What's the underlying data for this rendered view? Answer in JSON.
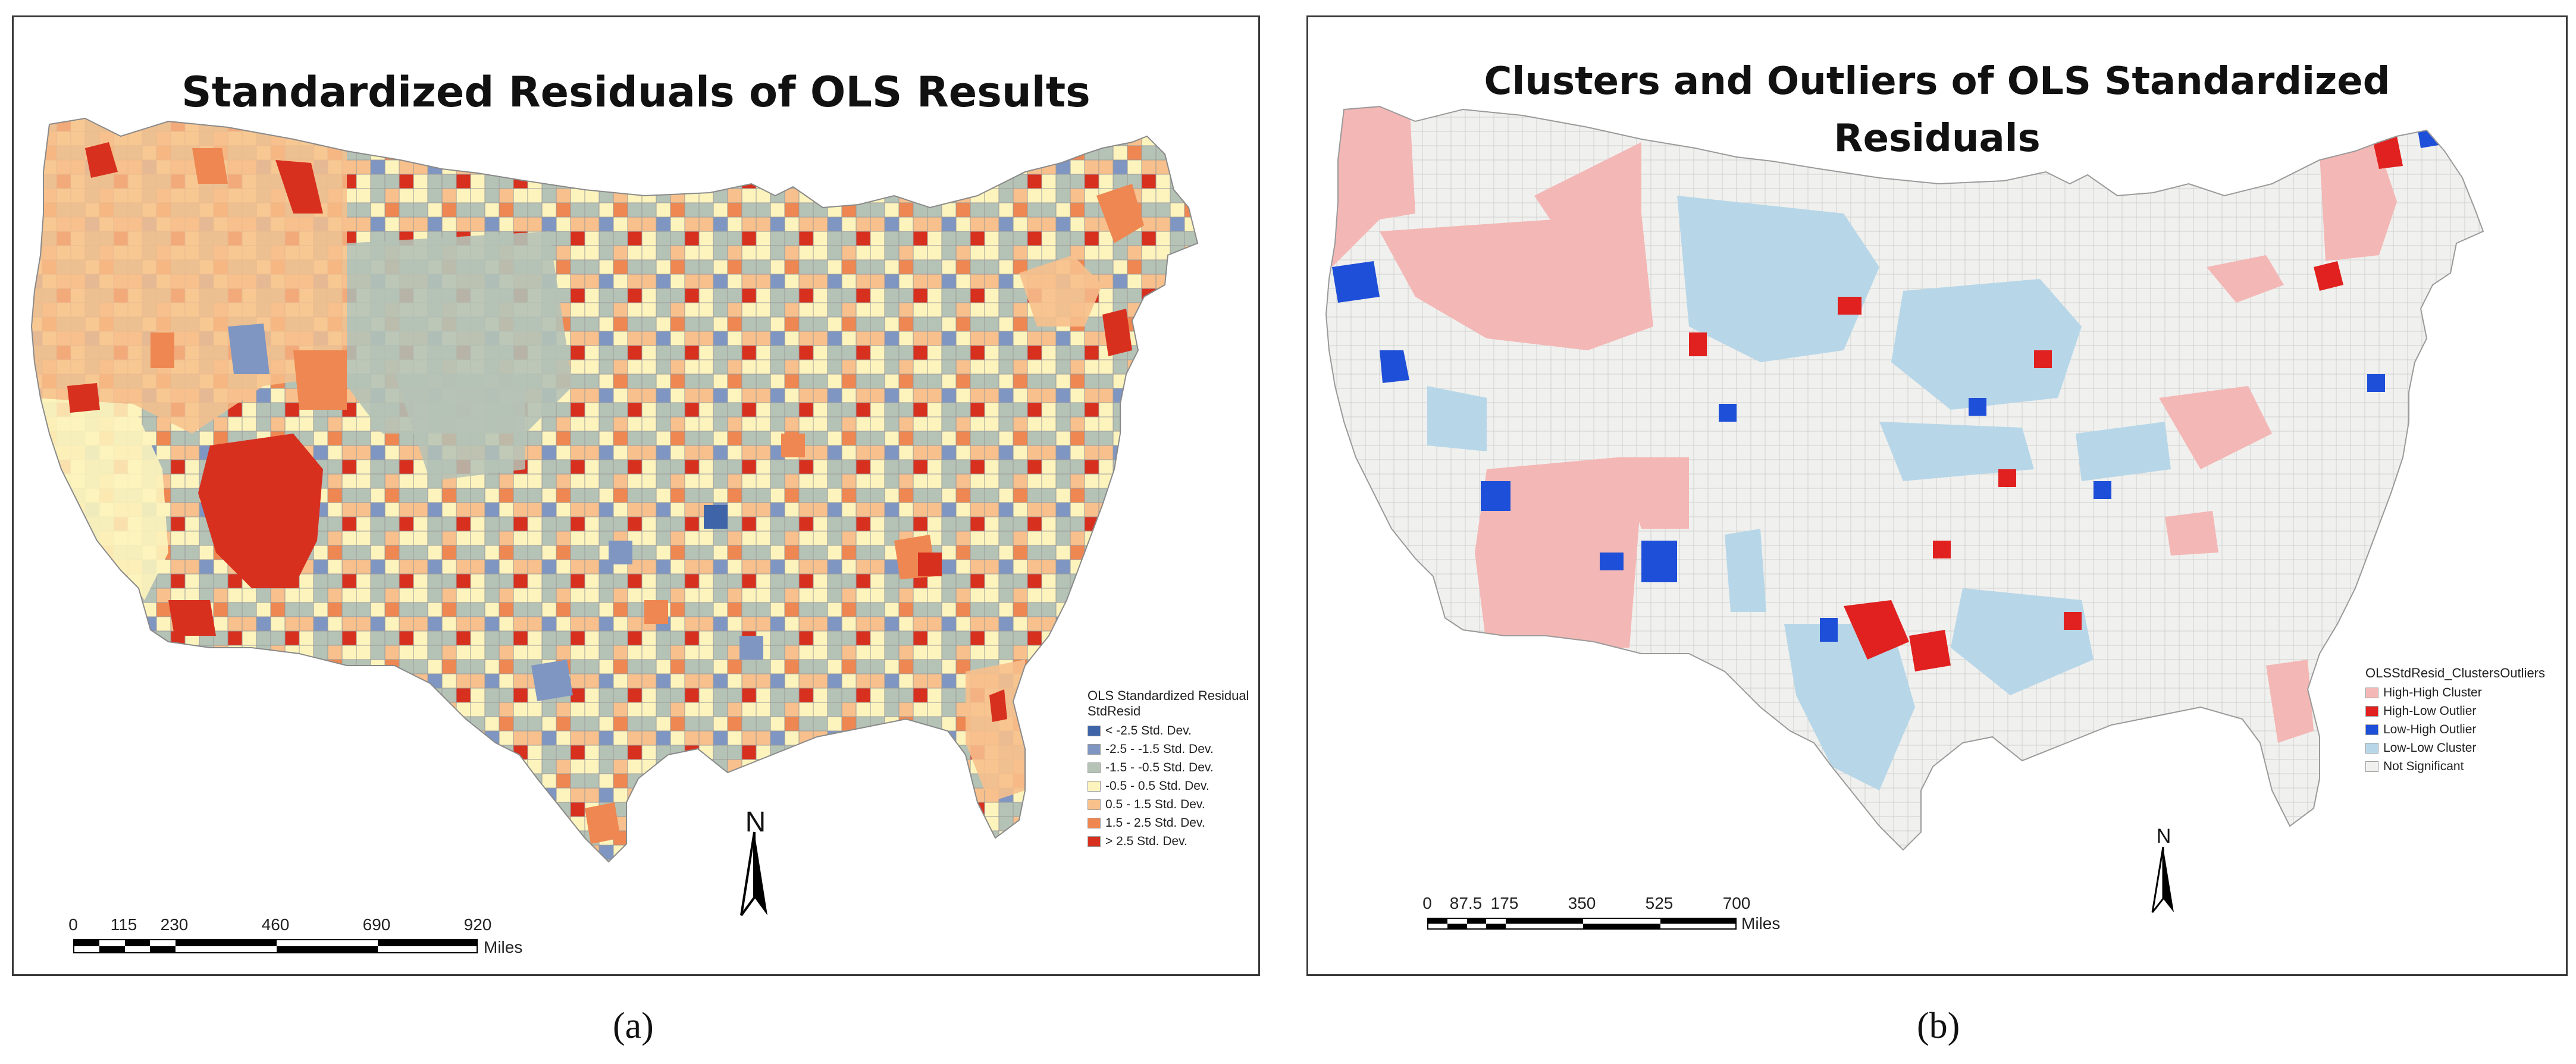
{
  "panel_a": {
    "title": "Standardized Residuals of OLS Results",
    "legend": {
      "title": "OLS Standardized Residual",
      "subtitle": "StdResid",
      "items": [
        {
          "label": "< -2.5 Std. Dev.",
          "color": "#3f65a8"
        },
        {
          "label": "-2.5 - -1.5 Std. Dev.",
          "color": "#7f96c2"
        },
        {
          "label": "-1.5 - -0.5 Std. Dev.",
          "color": "#b5c2b6"
        },
        {
          "label": "-0.5 - 0.5 Std. Dev.",
          "color": "#fdf4bd"
        },
        {
          "label": "0.5 - 1.5 Std. Dev.",
          "color": "#f7c08c"
        },
        {
          "label": "1.5 - 2.5 Std. Dev.",
          "color": "#ee8751"
        },
        {
          "label": "> 2.5 Std. Dev.",
          "color": "#d7301f"
        }
      ]
    },
    "scale": {
      "ticks": [
        "0",
        "115",
        "230",
        "460",
        "690",
        "920"
      ],
      "units": "Miles"
    },
    "north_label": "N",
    "caption": "(a)"
  },
  "panel_b": {
    "title_line1": "Clusters and Outliers of OLS Standardized",
    "title_line2": "Residuals",
    "legend": {
      "title": "OLSStdResid_ClustersOutliers",
      "items": [
        {
          "label": "High-High Cluster",
          "color": "#f3b7b5"
        },
        {
          "label": "High-Low Outlier",
          "color": "#e0211f"
        },
        {
          "label": "Low-High Outlier",
          "color": "#1e4fd8"
        },
        {
          "label": "Low-Low Cluster",
          "color": "#b7d7e8"
        },
        {
          "label": "Not Significant",
          "color": "#f0f0ee"
        }
      ]
    },
    "scale": {
      "ticks": [
        "0",
        "87.5",
        "175",
        "350",
        "525",
        "700"
      ],
      "units": "Miles"
    },
    "north_label": "N",
    "caption": "(b)"
  }
}
